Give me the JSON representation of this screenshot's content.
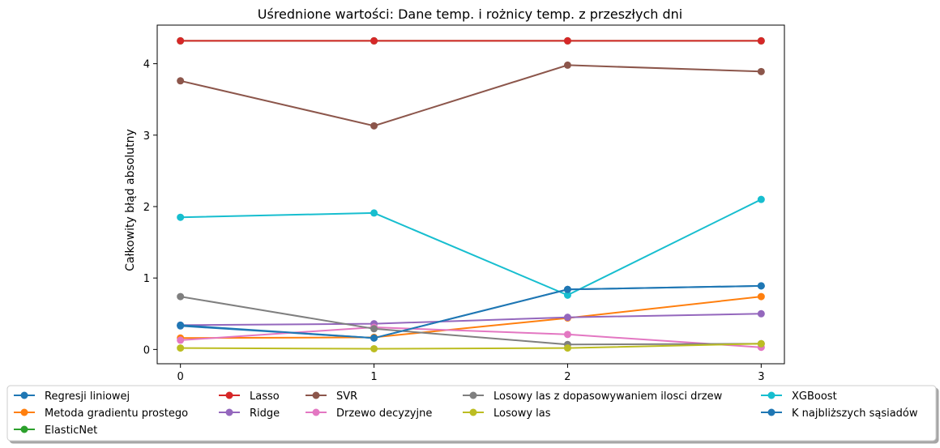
{
  "chart_data": {
    "type": "line",
    "title": "Uśrednione wartości: Dane temp. i rożnicy temp. z przeszłych dni",
    "xlabel": "",
    "ylabel": "Całkowity błąd absolutny",
    "x": [
      0,
      1,
      2,
      3
    ],
    "xlim": [
      -0.12,
      3.12
    ],
    "ylim": [
      -0.2,
      4.54
    ],
    "xticks": [
      "0",
      "1",
      "2",
      "3"
    ],
    "yticks": [
      0,
      1,
      2,
      3,
      4
    ],
    "legend_position": "bottom-center",
    "series": [
      {
        "name": "Regresji liniowej",
        "color": "#1f77b4",
        "values": [
          0.33,
          0.16,
          0.84,
          0.89
        ]
      },
      {
        "name": "Metoda gradientu prostego",
        "color": "#ff7f0e",
        "values": [
          0.16,
          0.17,
          0.44,
          0.74
        ]
      },
      {
        "name": "ElasticNet",
        "color": "#2ca02c",
        "values": [
          4.32,
          4.32,
          4.32,
          4.32
        ]
      },
      {
        "name": "Lasso",
        "color": "#d62728",
        "values": [
          4.32,
          4.32,
          4.32,
          4.32
        ]
      },
      {
        "name": "Ridge",
        "color": "#9467bd",
        "values": [
          0.34,
          0.36,
          0.45,
          0.5
        ]
      },
      {
        "name": "SVR",
        "color": "#8c564b",
        "values": [
          3.76,
          3.13,
          3.98,
          3.89
        ]
      },
      {
        "name": "Drzewo decyzyjne",
        "color": "#e377c2",
        "values": [
          0.13,
          0.31,
          0.21,
          0.03
        ]
      },
      {
        "name": "Losowy las z dopasowywaniem ilosci drzew",
        "color": "#7f7f7f",
        "values": [
          0.74,
          0.29,
          0.07,
          0.08
        ]
      },
      {
        "name": "Losowy las",
        "color": "#bcbd22",
        "values": [
          0.02,
          0.01,
          0.02,
          0.08
        ]
      },
      {
        "name": "XGBoost",
        "color": "#17becf",
        "values": [
          1.85,
          1.91,
          0.76,
          2.1
        ]
      },
      {
        "name": "K najbliższych sąsiadów",
        "color": "#1f77b4",
        "values": [
          0.34,
          0.16,
          0.84,
          0.89
        ]
      }
    ]
  }
}
